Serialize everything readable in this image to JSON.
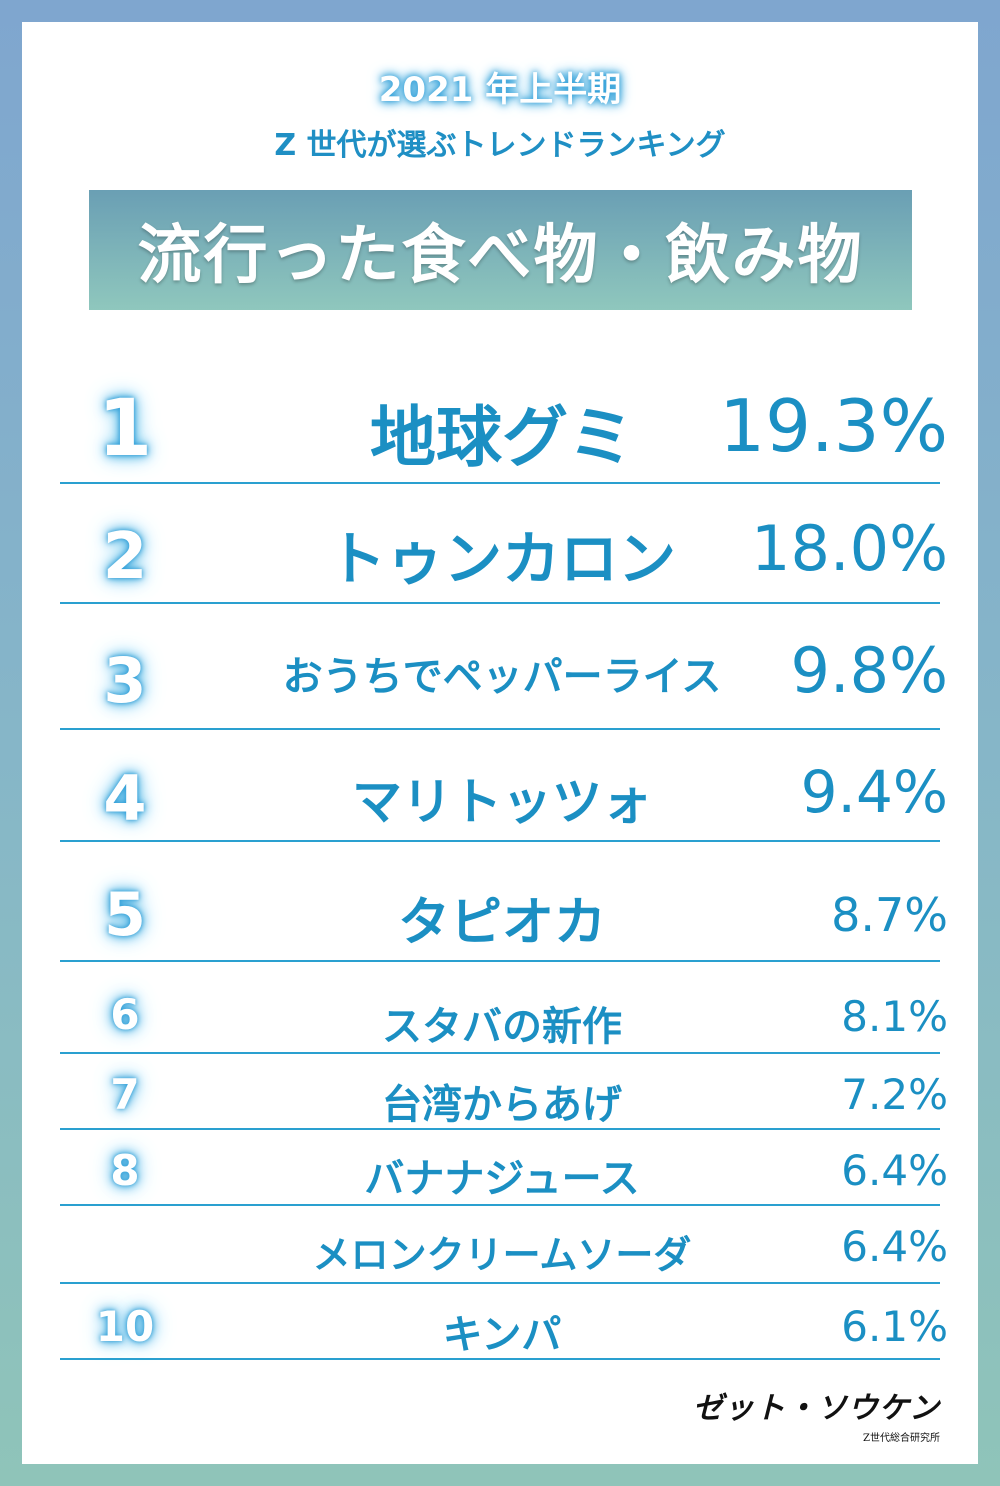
{
  "header": {
    "year": "2021 年上半期",
    "subtitle": "Z 世代が選ぶトレンドランキング",
    "banner": "流行った食べ物・飲み物"
  },
  "ranking": [
    {
      "rank": "1",
      "name": "地球グミ",
      "percent": "19.3%"
    },
    {
      "rank": "2",
      "name": "トゥンカロン",
      "percent": "18.0%"
    },
    {
      "rank": "3",
      "name": "おうちでペッパーライス",
      "percent": "9.8%"
    },
    {
      "rank": "4",
      "name": "マリトッツォ",
      "percent": "9.4%"
    },
    {
      "rank": "5",
      "name": "タピオカ",
      "percent": "8.7%"
    },
    {
      "rank": "6",
      "name": "スタバの新作",
      "percent": "8.1%"
    },
    {
      "rank": "7",
      "name": "台湾からあげ",
      "percent": "7.2%"
    },
    {
      "rank": "8",
      "name": "バナナジュース",
      "percent": "6.4%"
    },
    {
      "rank": "",
      "name": "メロンクリームソーダ",
      "percent": "6.4%"
    },
    {
      "rank": "10",
      "name": "キンパ",
      "percent": "6.1%"
    }
  ],
  "logo": {
    "main": "ゼット・ソウケン",
    "sub": "Z世代総合研究所"
  },
  "colors": {
    "accent": "#1b8fc3",
    "frame_top": "#7fa6cf",
    "frame_bottom": "#8fc4b9"
  }
}
